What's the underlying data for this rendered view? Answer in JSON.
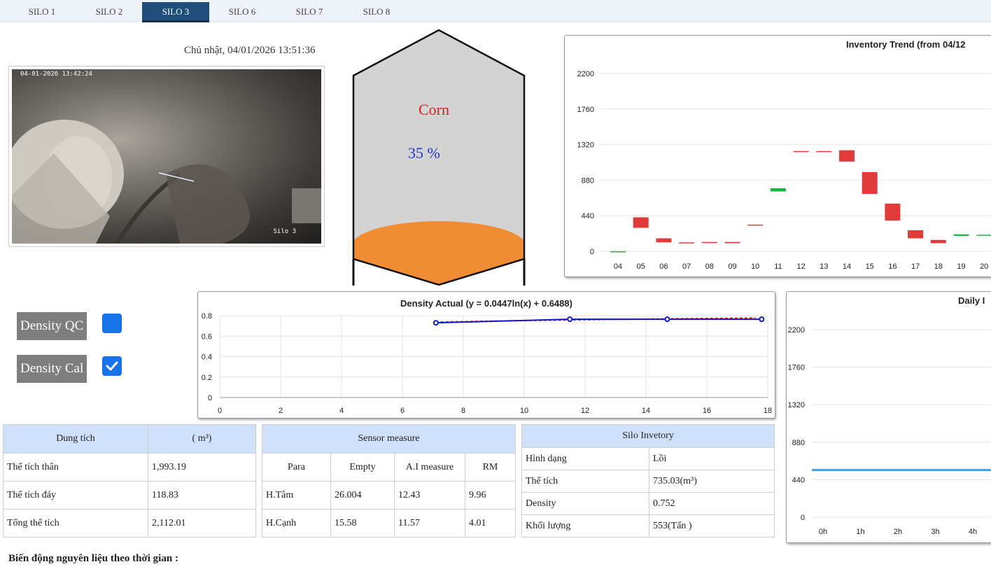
{
  "tabs": [
    {
      "label": "SILO 1",
      "active": false
    },
    {
      "label": "SILO 2",
      "active": false
    },
    {
      "label": "SILO 3",
      "active": true
    },
    {
      "label": "SILO 6",
      "active": false
    },
    {
      "label": "SILO 7",
      "active": false
    },
    {
      "label": "SILO 8",
      "active": false
    }
  ],
  "datetime": "Chủ nhật, 04/01/2026 13:51:36",
  "camera": {
    "timestamp": "04-01-2026 13:42:24",
    "label": "Silo 3"
  },
  "silo": {
    "product": "Corn",
    "level_text": "35 %",
    "level_fraction": 0.35,
    "product_color": "#f08c34"
  },
  "density_controls": [
    {
      "label": "Density QC",
      "checked": false
    },
    {
      "label": "Density Cal",
      "checked": true
    }
  ],
  "volume_table": {
    "headers": [
      "Dung tích",
      "( m³)"
    ],
    "rows": [
      [
        "Thể tích thân",
        "1,993.19"
      ],
      [
        "Thể tích đáy",
        "118.83"
      ],
      [
        "Tổng thể tích",
        "2,112.01"
      ]
    ]
  },
  "sensor_table": {
    "title": "Sensor measure",
    "headers": [
      "Para",
      "Empty",
      "A.I measure",
      "RM"
    ],
    "rows": [
      [
        "H.Tâm",
        "26.004",
        "12.43",
        "9.96"
      ],
      [
        "H.Cạnh",
        "15.58",
        "11.57",
        "4.01"
      ]
    ]
  },
  "inventory_table": {
    "title": "Silo Invetory",
    "rows": [
      [
        "Hình dạng",
        "Lồi"
      ],
      [
        "Thể tích",
        "735.03(m³)"
      ],
      [
        "Density",
        "0.752"
      ],
      [
        "Khối lượng",
        "553(Tấn )"
      ]
    ]
  },
  "footer_label": "Biến động nguyên liệu theo thời gian :",
  "chart_data": [
    {
      "type": "candlestick",
      "title": "Inventory Trend (from 04/12",
      "categories": [
        "04",
        "05",
        "06",
        "07",
        "08",
        "09",
        "10",
        "11",
        "12",
        "13",
        "14",
        "15",
        "16",
        "17",
        "18",
        "19",
        "20"
      ],
      "ylim": [
        0,
        2200
      ],
      "yticks": [
        0,
        440,
        880,
        1320,
        1760,
        2200
      ],
      "grid": true,
      "series": [
        {
          "values": [
            {
              "open": 0,
              "close": 0
            },
            {
              "open": 420,
              "close": 290
            },
            {
              "open": 160,
              "close": 110
            },
            {
              "open": 110,
              "close": 105
            },
            {
              "open": 115,
              "close": 110
            },
            {
              "open": 115,
              "close": 100
            },
            {
              "open": 330,
              "close": 325
            },
            {
              "open": 740,
              "close": 780
            },
            {
              "open": 1240,
              "close": 1235
            },
            {
              "open": 1240,
              "close": 1235
            },
            {
              "open": 1250,
              "close": 1110
            },
            {
              "open": 980,
              "close": 710
            },
            {
              "open": 590,
              "close": 380
            },
            {
              "open": 260,
              "close": 160
            },
            {
              "open": 140,
              "close": 100
            },
            {
              "open": 190,
              "close": 210
            },
            {
              "open": 200,
              "close": 205
            }
          ]
        }
      ],
      "colors": {
        "up": "#1fb33f",
        "down": "#e03a3a"
      }
    },
    {
      "type": "scatter",
      "title": "Density Actual  (y = 0.0447ln(x) + 0.6488)",
      "xlim": [
        0,
        18
      ],
      "ylim": [
        0,
        0.8
      ],
      "xticks": [
        0,
        2,
        4,
        6,
        8,
        10,
        12,
        14,
        16,
        18
      ],
      "yticks": [
        0,
        0.2,
        0.4,
        0.6,
        0.8
      ],
      "grid": true,
      "series": [
        {
          "x": [
            7.1,
            11.5,
            14.7,
            17.8
          ],
          "y": [
            0.73,
            0.765,
            0.765,
            0.765
          ],
          "color": "#1515c8"
        }
      ],
      "trendline": {
        "a": 0.0447,
        "b": 0.6488,
        "color": "#e02020"
      }
    },
    {
      "type": "line",
      "title": "Daily I",
      "categories": [
        "0h",
        "1h",
        "2h",
        "3h",
        "4h"
      ],
      "ylim": [
        0,
        2200
      ],
      "yticks": [
        0,
        440,
        880,
        1320,
        1760,
        2200
      ],
      "grid": true,
      "series": [
        {
          "values": [
            553,
            553,
            553,
            553,
            553
          ],
          "color": "#3f9ce8"
        }
      ]
    }
  ]
}
